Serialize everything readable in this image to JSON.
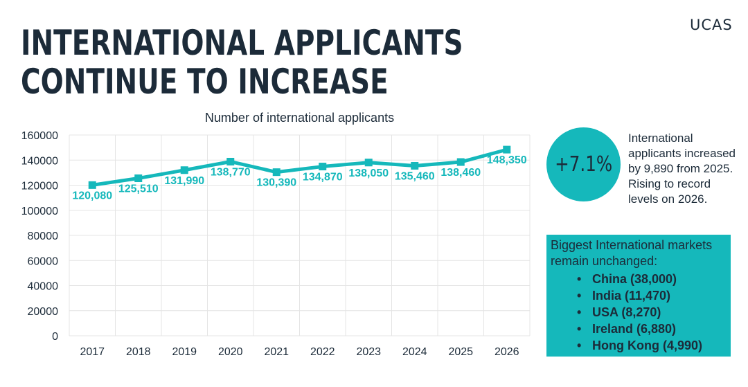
{
  "header": {
    "title": "INTERNATIONAL APPLICANTS CONTINUE TO INCREASE",
    "logo": "UCAS"
  },
  "colors": {
    "accent": "#15b8bb",
    "text": "#1c2b39",
    "grid": "#e4e4e4"
  },
  "chart_data": {
    "type": "line",
    "title": "Number of international applicants",
    "xlabel": "",
    "ylabel": "",
    "categories": [
      "2017",
      "2018",
      "2019",
      "2020",
      "2021",
      "2022",
      "2023",
      "2024",
      "2025",
      "2026"
    ],
    "values": [
      120080,
      125510,
      131990,
      138770,
      130390,
      134870,
      138050,
      135460,
      138460,
      148350
    ],
    "data_labels": [
      "120,080",
      "125,510",
      "131,990",
      "138,770",
      "130,390",
      "134,870",
      "138,050",
      "135,460",
      "138,460",
      "148,350"
    ],
    "y_ticks": [
      "0",
      "20000",
      "40000",
      "60000",
      "80000",
      "100000",
      "120000",
      "140000",
      "160000"
    ],
    "ylim": [
      0,
      160000
    ],
    "grid": true,
    "legend": "none"
  },
  "stat": {
    "value": "+7.1%",
    "description": "International applicants increased by 9,890 from 2025. Rising to record levels on 2026."
  },
  "markets": {
    "heading": "Biggest International markets remain unchanged:",
    "items": [
      "China (38,000)",
      "India (11,470)",
      "USA (8,270)",
      "Ireland (6,880)",
      "Hong Kong (4,990)"
    ]
  }
}
